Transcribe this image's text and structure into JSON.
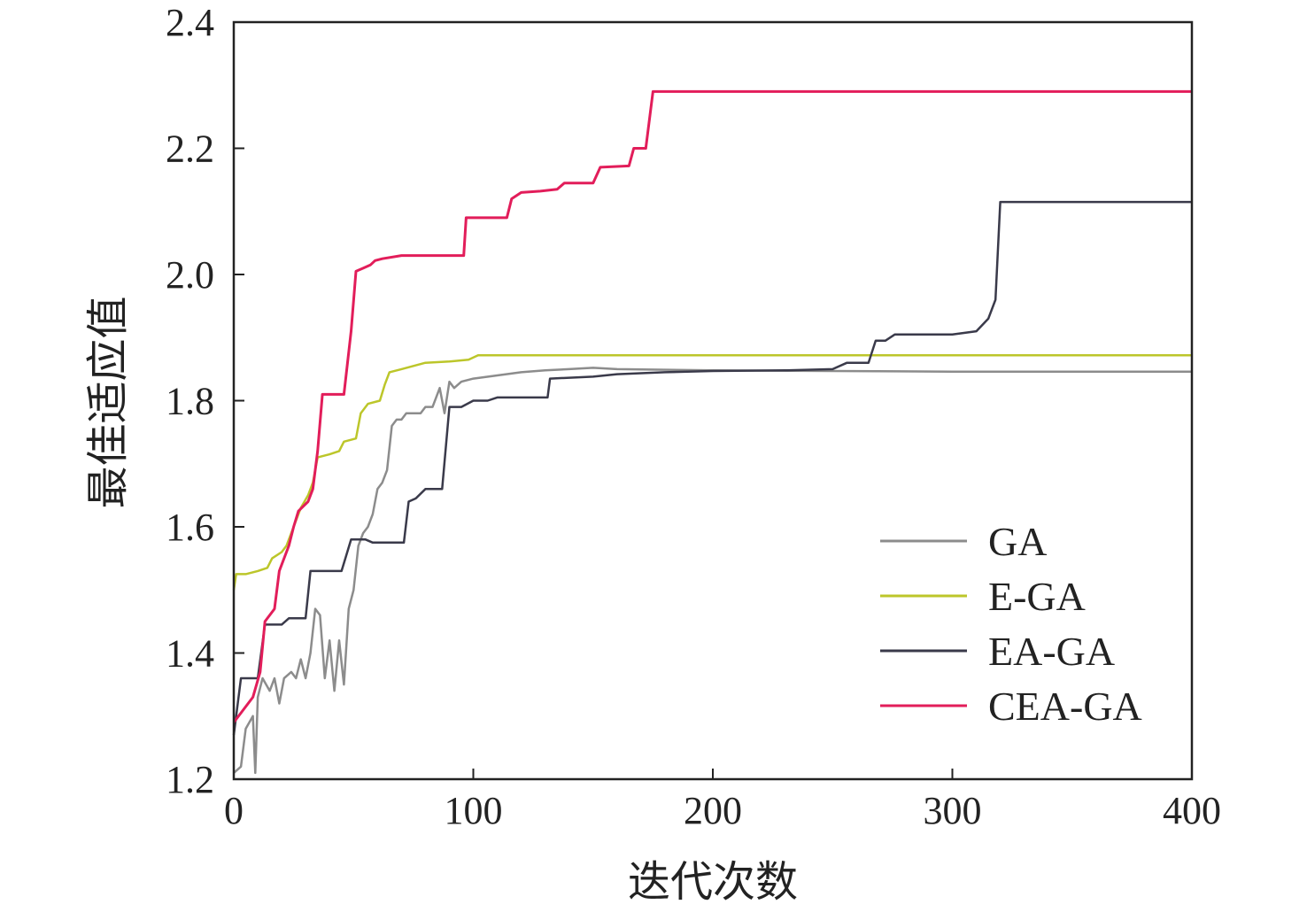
{
  "chart_data": {
    "type": "line",
    "xlabel": "迭代次数",
    "ylabel": "最佳适应值",
    "xlim": [
      0,
      400
    ],
    "ylim": [
      1.2,
      2.4
    ],
    "xticks": [
      0,
      100,
      200,
      300,
      400
    ],
    "yticks": [
      1.2,
      1.4,
      1.6,
      1.8,
      2.0,
      2.2,
      2.4
    ],
    "xtick_labels": [
      "0",
      "100",
      "200",
      "300",
      "400"
    ],
    "ytick_labels": [
      "1.2",
      "1.4",
      "1.6",
      "1.8",
      "2.0",
      "2.2",
      "2.4"
    ],
    "grid": false,
    "legend_position": "lower-right",
    "series": [
      {
        "name": "GA",
        "color": "#8c8c8c",
        "points": [
          [
            0,
            1.21
          ],
          [
            3,
            1.22
          ],
          [
            5,
            1.28
          ],
          [
            8,
            1.3
          ],
          [
            9,
            1.21
          ],
          [
            10,
            1.33
          ],
          [
            12,
            1.36
          ],
          [
            15,
            1.34
          ],
          [
            17,
            1.36
          ],
          [
            19,
            1.32
          ],
          [
            21,
            1.36
          ],
          [
            24,
            1.37
          ],
          [
            26,
            1.36
          ],
          [
            28,
            1.39
          ],
          [
            30,
            1.36
          ],
          [
            32,
            1.4
          ],
          [
            34,
            1.47
          ],
          [
            36,
            1.46
          ],
          [
            38,
            1.36
          ],
          [
            40,
            1.42
          ],
          [
            42,
            1.34
          ],
          [
            44,
            1.42
          ],
          [
            46,
            1.35
          ],
          [
            48,
            1.47
          ],
          [
            50,
            1.5
          ],
          [
            52,
            1.57
          ],
          [
            54,
            1.59
          ],
          [
            56,
            1.6
          ],
          [
            58,
            1.62
          ],
          [
            60,
            1.66
          ],
          [
            62,
            1.67
          ],
          [
            64,
            1.69
          ],
          [
            66,
            1.76
          ],
          [
            68,
            1.77
          ],
          [
            70,
            1.77
          ],
          [
            72,
            1.78
          ],
          [
            75,
            1.78
          ],
          [
            78,
            1.78
          ],
          [
            80,
            1.79
          ],
          [
            83,
            1.79
          ],
          [
            86,
            1.82
          ],
          [
            88,
            1.78
          ],
          [
            90,
            1.83
          ],
          [
            92,
            1.82
          ],
          [
            95,
            1.83
          ],
          [
            100,
            1.835
          ],
          [
            110,
            1.84
          ],
          [
            120,
            1.845
          ],
          [
            130,
            1.848
          ],
          [
            140,
            1.85
          ],
          [
            150,
            1.852
          ],
          [
            160,
            1.85
          ],
          [
            200,
            1.848
          ],
          [
            300,
            1.846
          ],
          [
            400,
            1.846
          ]
        ]
      },
      {
        "name": "E-GA",
        "color": "#bcc62a",
        "points": [
          [
            0,
            1.5
          ],
          [
            1,
            1.525
          ],
          [
            5,
            1.525
          ],
          [
            10,
            1.53
          ],
          [
            14,
            1.535
          ],
          [
            16,
            1.55
          ],
          [
            20,
            1.56
          ],
          [
            22,
            1.57
          ],
          [
            25,
            1.6
          ],
          [
            28,
            1.63
          ],
          [
            31,
            1.65
          ],
          [
            33,
            1.67
          ],
          [
            35,
            1.71
          ],
          [
            40,
            1.715
          ],
          [
            44,
            1.72
          ],
          [
            46,
            1.735
          ],
          [
            51,
            1.74
          ],
          [
            53,
            1.78
          ],
          [
            56,
            1.795
          ],
          [
            61,
            1.8
          ],
          [
            63,
            1.825
          ],
          [
            65,
            1.845
          ],
          [
            70,
            1.85
          ],
          [
            80,
            1.86
          ],
          [
            90,
            1.862
          ],
          [
            98,
            1.865
          ],
          [
            102,
            1.872
          ],
          [
            150,
            1.872
          ],
          [
            200,
            1.872
          ],
          [
            300,
            1.872
          ],
          [
            400,
            1.872
          ]
        ]
      },
      {
        "name": "EA-GA",
        "color": "#3a3a4a",
        "points": [
          [
            0,
            1.27
          ],
          [
            3,
            1.36
          ],
          [
            10,
            1.36
          ],
          [
            13,
            1.445
          ],
          [
            20,
            1.445
          ],
          [
            23,
            1.455
          ],
          [
            30,
            1.455
          ],
          [
            32,
            1.53
          ],
          [
            45,
            1.53
          ],
          [
            49,
            1.58
          ],
          [
            55,
            1.58
          ],
          [
            58,
            1.575
          ],
          [
            71,
            1.575
          ],
          [
            73,
            1.64
          ],
          [
            76,
            1.645
          ],
          [
            80,
            1.66
          ],
          [
            87,
            1.66
          ],
          [
            90,
            1.79
          ],
          [
            95,
            1.79
          ],
          [
            100,
            1.8
          ],
          [
            106,
            1.8
          ],
          [
            110,
            1.805
          ],
          [
            120,
            1.805
          ],
          [
            131,
            1.805
          ],
          [
            132,
            1.835
          ],
          [
            150,
            1.838
          ],
          [
            160,
            1.842
          ],
          [
            180,
            1.845
          ],
          [
            200,
            1.847
          ],
          [
            230,
            1.848
          ],
          [
            250,
            1.85
          ],
          [
            256,
            1.86
          ],
          [
            265,
            1.86
          ],
          [
            268,
            1.895
          ],
          [
            272,
            1.895
          ],
          [
            276,
            1.905
          ],
          [
            300,
            1.905
          ],
          [
            310,
            1.91
          ],
          [
            315,
            1.93
          ],
          [
            318,
            1.96
          ],
          [
            320,
            2.115
          ],
          [
            330,
            2.115
          ],
          [
            400,
            2.115
          ]
        ]
      },
      {
        "name": "CEA-GA",
        "color": "#e21d5a",
        "points": [
          [
            0,
            1.29
          ],
          [
            4,
            1.31
          ],
          [
            8,
            1.33
          ],
          [
            11,
            1.37
          ],
          [
            13,
            1.45
          ],
          [
            17,
            1.47
          ],
          [
            19,
            1.53
          ],
          [
            21,
            1.55
          ],
          [
            23,
            1.57
          ],
          [
            25,
            1.6
          ],
          [
            27,
            1.625
          ],
          [
            31,
            1.64
          ],
          [
            33,
            1.66
          ],
          [
            35,
            1.72
          ],
          [
            37,
            1.81
          ],
          [
            46,
            1.81
          ],
          [
            49,
            1.91
          ],
          [
            51,
            2.005
          ],
          [
            54,
            2.01
          ],
          [
            57,
            2.015
          ],
          [
            59,
            2.022
          ],
          [
            62,
            2.025
          ],
          [
            70,
            2.03
          ],
          [
            86,
            2.03
          ],
          [
            96,
            2.03
          ],
          [
            97,
            2.09
          ],
          [
            104,
            2.09
          ],
          [
            114,
            2.09
          ],
          [
            116,
            2.12
          ],
          [
            120,
            2.13
          ],
          [
            128,
            2.132
          ],
          [
            135,
            2.135
          ],
          [
            138,
            2.145
          ],
          [
            150,
            2.145
          ],
          [
            153,
            2.17
          ],
          [
            165,
            2.172
          ],
          [
            167,
            2.2
          ],
          [
            172,
            2.2
          ],
          [
            175,
            2.29
          ],
          [
            200,
            2.29
          ],
          [
            300,
            2.29
          ],
          [
            400,
            2.29
          ]
        ]
      }
    ]
  }
}
